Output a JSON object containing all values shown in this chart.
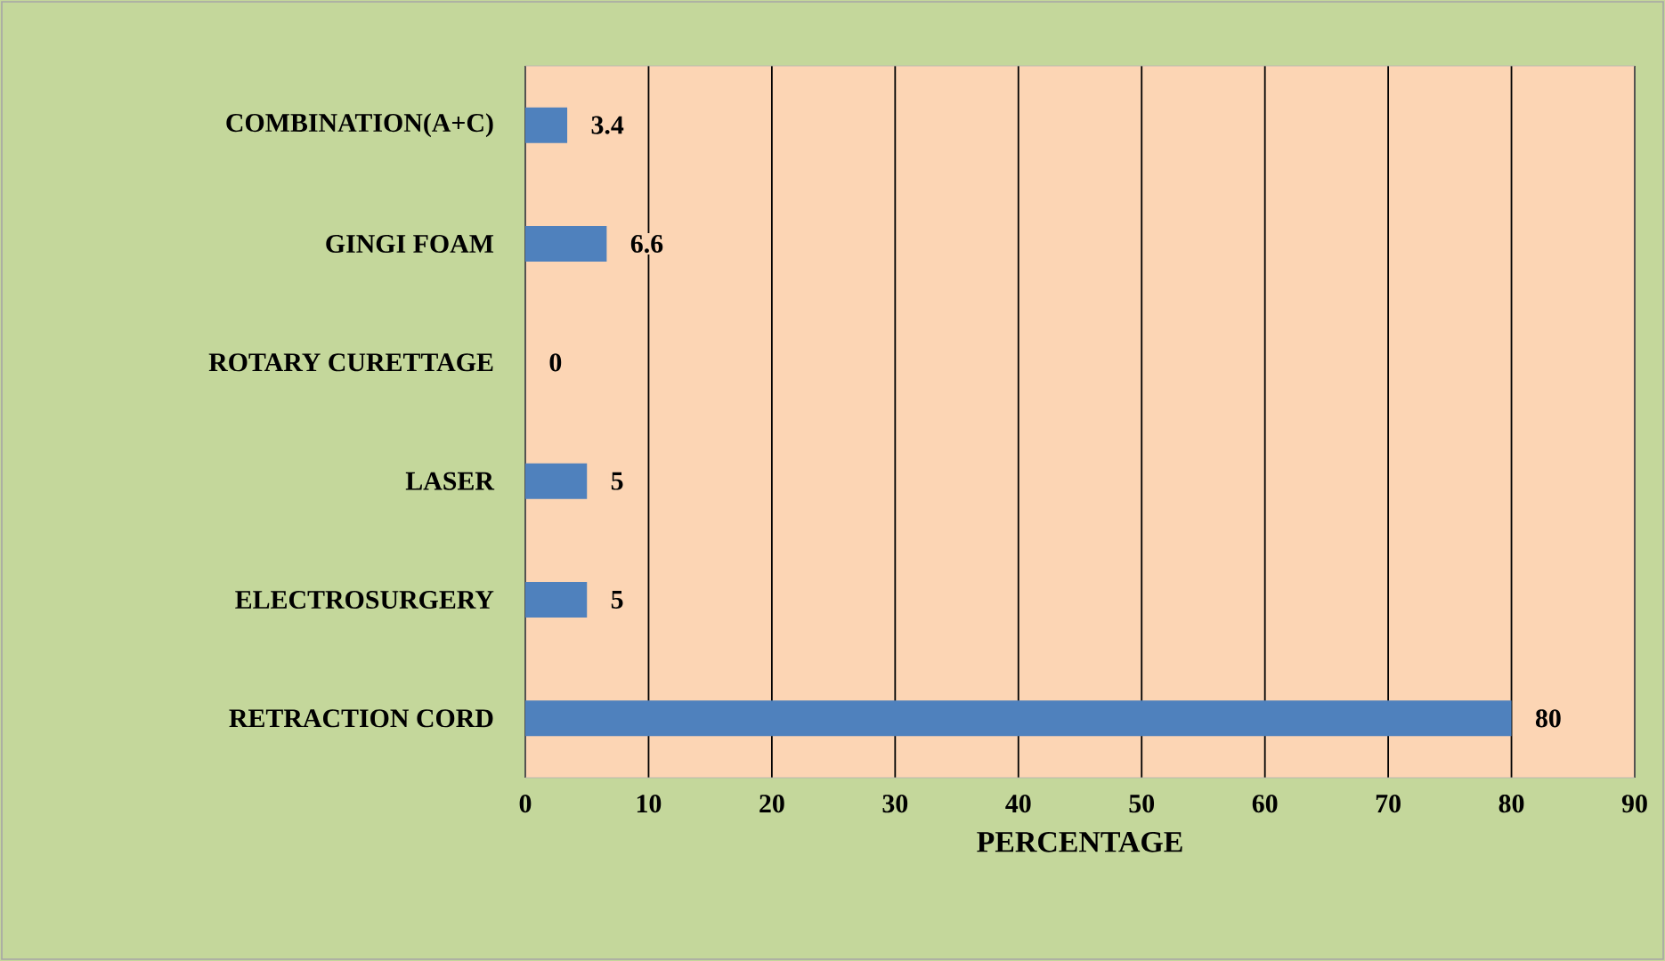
{
  "chart_data": {
    "type": "bar",
    "orientation": "horizontal",
    "xlabel": "PERCENTAGE",
    "categories": [
      "COMBINATION(A+C)",
      "GINGI FOAM",
      "ROTARY CURETTAGE",
      "LASER",
      "ELECTROSURGERY",
      "RETRACTION CORD"
    ],
    "values": [
      3.4,
      6.6,
      0,
      5,
      5,
      80
    ],
    "color": "#4f81bd",
    "xlim": [
      0,
      90
    ],
    "xticks": [
      0,
      10,
      20,
      30,
      40,
      50,
      60,
      70,
      80,
      90
    ],
    "grid": "x",
    "data_labels": true
  }
}
